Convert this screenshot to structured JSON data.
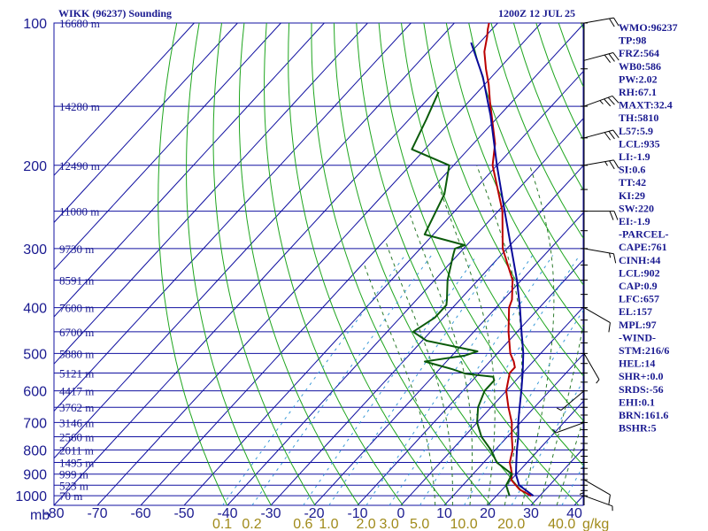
{
  "header": {
    "station": "WIKK (96237) Sounding",
    "time": "1200Z 12 JUL 25"
  },
  "chart_data": {
    "type": "line",
    "title": "WIKK (96237) Sounding",
    "subtitle": "1200Z 12 JUL 25",
    "pressure_levels": [
      "100",
      "200",
      "300",
      "400",
      "500",
      "600",
      "700",
      "800",
      "900",
      "1000"
    ],
    "pressure_values": [
      100,
      200,
      300,
      400,
      500,
      600,
      700,
      800,
      900,
      1000
    ],
    "pressure_unit": "mb",
    "temperature_ticks": [
      "-80",
      "-70",
      "-60",
      "-50",
      "-40",
      "-30",
      "-20",
      "-10",
      "0",
      "10",
      "20",
      "30",
      "40"
    ],
    "mixing_ratio_ticks": [
      "0.1",
      "0.2",
      "0.6",
      "1.0",
      "2.0",
      "3.0",
      "5.0",
      "10.0",
      "20.0",
      "40.0"
    ],
    "mixing_ratio_unit": "g/kg",
    "height_labels": [
      {
        "p": 100,
        "text": "16680 m"
      },
      {
        "p": 150,
        "text": "14280 m"
      },
      {
        "p": 200,
        "text": "12490 m"
      },
      {
        "p": 250,
        "text": "11000 m"
      },
      {
        "p": 300,
        "text": "9730 m"
      },
      {
        "p": 350,
        "text": "8591 m"
      },
      {
        "p": 400,
        "text": "7600 m"
      },
      {
        "p": 450,
        "text": "6700 m"
      },
      {
        "p": 500,
        "text": "5880 m"
      },
      {
        "p": 550,
        "text": "5121 m"
      },
      {
        "p": 600,
        "text": "4417 m"
      },
      {
        "p": 650,
        "text": "3762 m"
      },
      {
        "p": 700,
        "text": "3146 m"
      },
      {
        "p": 750,
        "text": "2560 m"
      },
      {
        "p": 800,
        "text": "2011 m"
      },
      {
        "p": 850,
        "text": "1495 m"
      },
      {
        "p": 900,
        "text": "999 m"
      },
      {
        "p": 950,
        "text": "523 m"
      },
      {
        "p": 1000,
        "text": "70 m"
      }
    ],
    "xlim": [
      -80,
      50
    ],
    "ylim": [
      100,
      1050
    ],
    "yscale": "log",
    "series": [
      {
        "color": "#bb0000",
        "points": [
          {
            "p": 1000,
            "t": 28
          },
          {
            "p": 970,
            "t": 24
          },
          {
            "p": 925,
            "t": 20
          },
          {
            "p": 900,
            "t": 19
          },
          {
            "p": 850,
            "t": 16
          },
          {
            "p": 800,
            "t": 14
          },
          {
            "p": 750,
            "t": 11
          },
          {
            "p": 700,
            "t": 8
          },
          {
            "p": 650,
            "t": 4
          },
          {
            "p": 600,
            "t": 0
          },
          {
            "p": 550,
            "t": -3
          },
          {
            "p": 535,
            "t": -3
          },
          {
            "p": 520,
            "t": -4.5
          },
          {
            "p": 500,
            "t": -7
          },
          {
            "p": 450,
            "t": -12
          },
          {
            "p": 400,
            "t": -17
          },
          {
            "p": 385,
            "t": -18
          },
          {
            "p": 350,
            "t": -22
          },
          {
            "p": 300,
            "t": -31
          },
          {
            "p": 250,
            "t": -39
          },
          {
            "p": 200,
            "t": -51
          },
          {
            "p": 180,
            "t": -55
          },
          {
            "p": 150,
            "t": -64
          },
          {
            "p": 147,
            "t": -65
          },
          {
            "p": 135,
            "t": -69
          },
          {
            "p": 125,
            "t": -73
          },
          {
            "p": 115,
            "t": -77
          },
          {
            "p": 107,
            "t": -79.5
          },
          {
            "p": 103,
            "t": -81
          },
          {
            "p": 100,
            "t": -82
          }
        ]
      },
      {
        "color": "#0a5a0a",
        "points": [
          {
            "p": 1000,
            "t": 23
          },
          {
            "p": 950,
            "t": 20
          },
          {
            "p": 900,
            "t": 19
          },
          {
            "p": 850,
            "t": 13
          },
          {
            "p": 800,
            "t": 9
          },
          {
            "p": 750,
            "t": 4
          },
          {
            "p": 700,
            "t": 0
          },
          {
            "p": 650,
            "t": -3
          },
          {
            "p": 600,
            "t": -5
          },
          {
            "p": 570,
            "t": -5
          },
          {
            "p": 560,
            "t": -6
          },
          {
            "p": 552,
            "t": -13
          },
          {
            "p": 540,
            "t": -17
          },
          {
            "p": 520,
            "t": -25
          },
          {
            "p": 505,
            "t": -17
          },
          {
            "p": 495,
            "t": -15
          },
          {
            "p": 470,
            "t": -29
          },
          {
            "p": 450,
            "t": -34
          },
          {
            "p": 420,
            "t": -32
          },
          {
            "p": 395,
            "t": -32
          },
          {
            "p": 385,
            "t": -33
          },
          {
            "p": 350,
            "t": -37
          },
          {
            "p": 310,
            "t": -41
          },
          {
            "p": 300,
            "t": -42
          },
          {
            "p": 295,
            "t": -40.5
          },
          {
            "p": 280,
            "t": -52
          },
          {
            "p": 230,
            "t": -56
          },
          {
            "p": 200,
            "t": -61
          },
          {
            "p": 185,
            "t": -73
          },
          {
            "p": 160,
            "t": -76
          },
          {
            "p": 140,
            "t": -79
          }
        ]
      },
      {
        "color": "#0a0a9a",
        "points": [
          {
            "p": 1000,
            "t": 28.5
          },
          {
            "p": 950,
            "t": 23
          },
          {
            "p": 902,
            "t": 20
          },
          {
            "p": 850,
            "t": 17.5
          },
          {
            "p": 800,
            "t": 15
          },
          {
            "p": 750,
            "t": 12.5
          },
          {
            "p": 700,
            "t": 9.5
          },
          {
            "p": 657,
            "t": 7
          },
          {
            "p": 600,
            "t": 3.5
          },
          {
            "p": 550,
            "t": 0
          },
          {
            "p": 500,
            "t": -4
          },
          {
            "p": 450,
            "t": -9
          },
          {
            "p": 400,
            "t": -14.5
          },
          {
            "p": 350,
            "t": -21
          },
          {
            "p": 300,
            "t": -29
          },
          {
            "p": 250,
            "t": -38.5
          },
          {
            "p": 200,
            "t": -50
          },
          {
            "p": 157,
            "t": -62
          },
          {
            "p": 130,
            "t": -72
          },
          {
            "p": 110,
            "t": -82
          }
        ]
      }
    ],
    "wind_barbs": [
      {
        "p": 100,
        "dir": 80,
        "kt": 20
      },
      {
        "p": 120,
        "dir": 75,
        "kt": 30
      },
      {
        "p": 150,
        "dir": 70,
        "kt": 35
      },
      {
        "p": 175,
        "dir": 75,
        "kt": 30
      },
      {
        "p": 200,
        "dir": 80,
        "kt": 25
      },
      {
        "p": 250,
        "dir": 90,
        "kt": 20
      },
      {
        "p": 300,
        "dir": 100,
        "kt": 15
      },
      {
        "p": 400,
        "dir": 120,
        "kt": 10
      },
      {
        "p": 500,
        "dir": 150,
        "kt": 5
      },
      {
        "p": 600,
        "dir": 230,
        "kt": 5
      },
      {
        "p": 700,
        "dir": 250,
        "kt": 5
      },
      {
        "p": 850,
        "dir": 180,
        "kt": 5
      },
      {
        "p": 925,
        "dir": 120,
        "kt": 10
      },
      {
        "p": 1000,
        "dir": 110,
        "kt": 5
      }
    ],
    "indices": [
      "WMO:96237",
      "TP:98",
      "FRZ:564",
      "WB0:586",
      "PW:2.02",
      "RH:67.1",
      "MAXT:32.4",
      "TH:5810",
      "L57:5.9",
      "LCL:935",
      "LI:-1.9",
      "SI:0.6",
      "TT:42",
      "KI:29",
      "SW:220",
      "EI:-1.9",
      "-PARCEL-",
      "CAPE:761",
      "CINH:44",
      "LCL:902",
      "CAP:0.9",
      "LFC:657",
      "EL:157",
      "MPL:97",
      "-WIND-",
      "STM:216/6",
      "HEL:14",
      "SHR+:0.0",
      "SRDS:-56",
      "EHI:0.1",
      "BRN:161.6",
      "BSHR:5"
    ],
    "colors": {
      "grid": "#1010a0",
      "dry_adiabat": "#1ea51e",
      "moist_adiabat": "#2a7a2a",
      "mixing_ratio": "#3a9ad8",
      "temperature": "#bb0000",
      "dewpoint": "#0a5a0a",
      "parcel": "#0a0a9a",
      "axis_text": "#1a1a90",
      "mixing_text": "#a08a1a"
    }
  }
}
